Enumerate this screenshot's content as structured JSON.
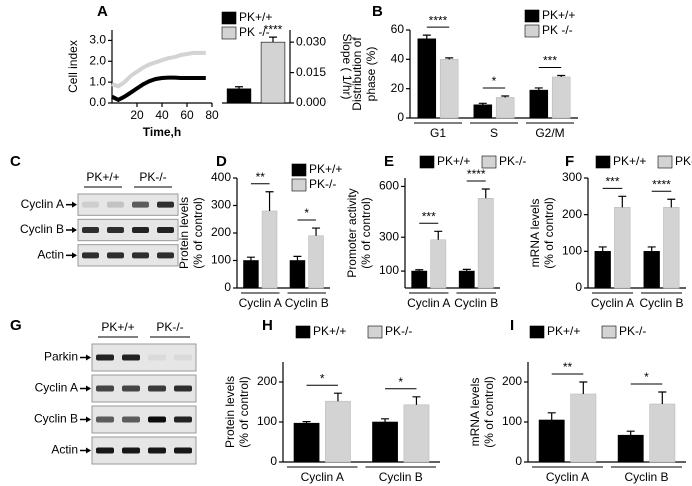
{
  "chart_data": [
    {
      "panel": "A",
      "type": "line",
      "x_label": "Time,h",
      "y_label": [
        "Cell index"
      ],
      "x": [
        0,
        5,
        10,
        15,
        20,
        25,
        30,
        35,
        40,
        45,
        50,
        55,
        60,
        65,
        70,
        75
      ],
      "series": [
        {
          "name": "PK+/+",
          "color": "#000000",
          "values": [
            0.3,
            0.15,
            0.3,
            0.5,
            0.7,
            0.9,
            1.05,
            1.15,
            1.2,
            1.22,
            1.22,
            1.2,
            1.2,
            1.2,
            1.2,
            1.2
          ]
        },
        {
          "name": "PK -/-",
          "color": "#d3d3d3",
          "values": [
            0.9,
            0.8,
            1.0,
            1.3,
            1.5,
            1.7,
            1.85,
            1.95,
            2.05,
            2.15,
            2.2,
            2.3,
            2.35,
            2.4,
            2.4,
            2.4
          ]
        }
      ],
      "xlim": [
        0,
        80
      ],
      "xticks": [
        20,
        40,
        60,
        80
      ],
      "ylim": [
        0,
        3.5
      ],
      "yticks": [
        {
          "value": 0,
          "label": "0.0"
        },
        {
          "value": 1,
          "label": "1.0"
        },
        {
          "value": 2,
          "label": "2.0"
        },
        {
          "value": 3,
          "label": "3.0"
        }
      ]
    },
    {
      "type": "bar",
      "y_label": [
        "Slope ( 1/hr)"
      ],
      "y_axis": "right",
      "values": [
        0.007,
        0.03
      ],
      "errors": [
        0.001,
        0.0025
      ],
      "colors": [
        "#000000",
        "#d3d3d3"
      ],
      "ylim": [
        0,
        0.036
      ],
      "yticks": [
        {
          "value": 0,
          "label": "0.000"
        },
        {
          "value": 0.015,
          "label": "0.015"
        },
        {
          "value": 0.03,
          "label": "0.030"
        }
      ],
      "annotation": "****"
    },
    {
      "panel": "B",
      "type": "bar",
      "y_label": [
        "Distribution of",
        "phase (%)"
      ],
      "categories": [
        "G1",
        "S",
        "G2/M"
      ],
      "series": [
        {
          "name": "PK+/+",
          "color": "#000000",
          "values": [
            54,
            9,
            19
          ],
          "errors": [
            2.5,
            1,
            1.5
          ]
        },
        {
          "name": "PK -/-",
          "color": "#d3d3d3",
          "values": [
            40,
            14,
            28
          ],
          "errors": [
            1,
            1,
            1
          ]
        }
      ],
      "significance": [
        "****",
        "*",
        "***"
      ],
      "ylim": [
        0,
        60
      ],
      "yticks": [
        0,
        20,
        40,
        60
      ]
    },
    {
      "panel": "C",
      "type": "blot",
      "lanes": [
        "PK+/+",
        "PK-/-"
      ],
      "rows": [
        "Cyclin A",
        "Cyclin B",
        "Actin"
      ]
    },
    {
      "panel": "D",
      "type": "bar",
      "y_label": [
        "Protein levels",
        "(% of control)"
      ],
      "categories": [
        "Cyclin A",
        "Cyclin B"
      ],
      "series": [
        {
          "name": "PK+/+",
          "color": "#000000",
          "values": [
            100,
            100
          ],
          "errors": [
            12,
            15
          ]
        },
        {
          "name": "PK-/-",
          "color": "#d3d3d3",
          "values": [
            280,
            190
          ],
          "errors": [
            70,
            28
          ]
        }
      ],
      "significance": [
        "**",
        "*"
      ],
      "ylim": [
        0,
        400
      ],
      "yticks": [
        0,
        100,
        200,
        300,
        400
      ]
    },
    {
      "panel": "E",
      "type": "bar",
      "y_label": [
        "Promoter activity",
        "(% of control)"
      ],
      "categories": [
        "Cyclin A",
        "Cyclin B"
      ],
      "series": [
        {
          "name": "PK+/+",
          "color": "#000000",
          "values": [
            100,
            100
          ],
          "errors": [
            8,
            10
          ]
        },
        {
          "name": "PK-/-",
          "color": "#d3d3d3",
          "values": [
            285,
            530
          ],
          "errors": [
            50,
            55
          ]
        }
      ],
      "significance": [
        "***",
        "****"
      ],
      "ylim": [
        0,
        650
      ],
      "yticks": [
        100,
        300,
        600
      ]
    },
    {
      "panel": "F",
      "type": "bar",
      "y_label": [
        "mRNA  levels",
        "(% of control)"
      ],
      "categories": [
        "Cyclin A",
        "Cyclin B"
      ],
      "series": [
        {
          "name": "PK+/+",
          "color": "#000000",
          "values": [
            100,
            100
          ],
          "errors": [
            12,
            12
          ]
        },
        {
          "name": "PK-/-",
          "color": "#d3d3d3",
          "values": [
            220,
            220
          ],
          "errors": [
            30,
            22
          ]
        }
      ],
      "significance": [
        "***",
        "****"
      ],
      "ylim": [
        0,
        300
      ],
      "yticks": [
        0,
        100,
        200,
        300
      ]
    },
    {
      "panel": "G",
      "type": "blot",
      "lanes": [
        "PK+/+",
        "PK-/-"
      ],
      "rows": [
        "Parkin",
        "Cyclin A",
        "Cyclin B",
        "Actin"
      ]
    },
    {
      "panel": "H",
      "type": "bar",
      "y_label": [
        "Protein  levels",
        "(% of control)"
      ],
      "categories": [
        "Cyclin A",
        "Cyclin B"
      ],
      "series": [
        {
          "name": "PK+/+",
          "color": "#000000",
          "values": [
            97,
            100
          ],
          "errors": [
            4,
            8
          ]
        },
        {
          "name": "PK-/-",
          "color": "#d3d3d3",
          "values": [
            152,
            143
          ],
          "errors": [
            20,
            20
          ]
        }
      ],
      "significance": [
        "*",
        "*"
      ],
      "ylim": [
        0,
        250
      ],
      "yticks": [
        0,
        100,
        200
      ]
    },
    {
      "panel": "I",
      "type": "bar",
      "y_label": [
        "mRNA  levels",
        "(% of control)"
      ],
      "categories": [
        "Cyclin A",
        "Cyclin B"
      ],
      "series": [
        {
          "name": "PK+/+",
          "color": "#000000",
          "values": [
            105,
            67
          ],
          "errors": [
            18,
            10
          ]
        },
        {
          "name": "PK-/-",
          "color": "#d3d3d3",
          "values": [
            170,
            145
          ],
          "errors": [
            30,
            30
          ]
        }
      ],
      "significance": [
        "**",
        "*"
      ],
      "ylim": [
        0,
        250
      ],
      "yticks": [
        0,
        100,
        200
      ]
    }
  ]
}
